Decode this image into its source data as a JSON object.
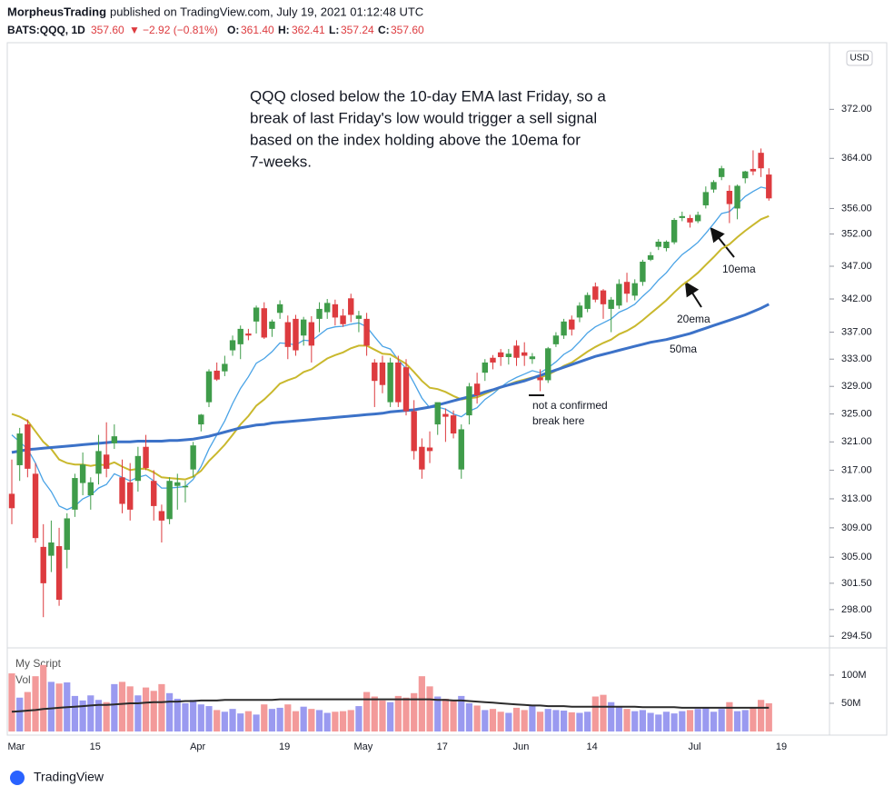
{
  "header": {
    "publisher": "MorpheusTrading",
    "published": "published on TradingView.com, July 19, 2021 01:12:48 UTC",
    "symbol": "BATS:QQQ, 1D",
    "price": "357.60",
    "arrow": "▼",
    "change": "−2.92 (−0.81%)",
    "o_label": "O:",
    "o_value": "361.40",
    "h_label": "H:",
    "h_value": "362.41",
    "l_label": "L:",
    "l_value": "357.24",
    "c_label": "C:",
    "c_value": "357.60"
  },
  "footer": {
    "brand": "TradingView"
  },
  "chart_data": {
    "type": "candlestick",
    "currency": "USD",
    "log_scale": true,
    "grid": false,
    "up_color": "#3f9c4a",
    "down_color": "#dd3b3f",
    "annotation": [
      "QQQ closed below the 10-day EMA last Friday, so a",
      "break of last Friday's low would trigger a sell signal",
      "based on the index holding above the 10ema for",
      "7-weeks."
    ],
    "labels": {
      "ema10": "10ema",
      "ema20": "20ema",
      "ma50": "50ma",
      "break": [
        "not a confirmed",
        "break here"
      ]
    },
    "categories": [
      "Mar",
      null,
      null,
      null,
      null,
      null,
      null,
      null,
      null,
      null,
      "15",
      null,
      null,
      null,
      null,
      null,
      null,
      null,
      null,
      null,
      null,
      null,
      null,
      "Apr",
      null,
      null,
      null,
      null,
      null,
      null,
      null,
      null,
      null,
      null,
      "19",
      null,
      null,
      null,
      null,
      null,
      null,
      null,
      null,
      null,
      "May",
      null,
      null,
      null,
      null,
      null,
      null,
      null,
      null,
      null,
      "17",
      null,
      null,
      null,
      null,
      null,
      null,
      null,
      null,
      null,
      "Jun",
      null,
      null,
      null,
      null,
      null,
      null,
      null,
      null,
      "14",
      null,
      null,
      null,
      null,
      null,
      null,
      null,
      null,
      null,
      null,
      null,
      null,
      "Jul",
      null,
      null,
      null,
      null,
      null,
      null,
      null,
      null,
      null,
      null,
      "19"
    ],
    "open": [
      313.7,
      317.7,
      323.5,
      316.5,
      306.4,
      305.2,
      306.5,
      306.0,
      311.5,
      315.2,
      313.5,
      316.5,
      319.2,
      320.8,
      316.0,
      315.3,
      315.5,
      320.3,
      315.5,
      311.3,
      310.2,
      314.8,
      314.6,
      317.1,
      323.5,
      326.7,
      331.3,
      331.2,
      334.3,
      335.2,
      336.8,
      338.6,
      340.6,
      337.5,
      339.9,
      338.5,
      339.0,
      336.5,
      338.5,
      339.0,
      340.0,
      341.2,
      339.5,
      342.1,
      339.0,
      339.0,
      332.5,
      332.5,
      326.7,
      332.5,
      331.8,
      325.4,
      320.3,
      320.2,
      323.5,
      325.0,
      324.8,
      317.1,
      324.8,
      329.4,
      331.0,
      333.2,
      334.0,
      333.3,
      335.0,
      334.0,
      333.0,
      330.3,
      329.9,
      335.2,
      336.5,
      338.9,
      339.2,
      340.5,
      343.9,
      343.3,
      340.5,
      341.0,
      344.6,
      342.5,
      344.6,
      348.0,
      350.0,
      349.8,
      350.7,
      354.5,
      354.5,
      354.0,
      356.5,
      359.0,
      361.0,
      358.8,
      356.0,
      360.8,
      362.3,
      364.9,
      361.4,
      null
    ],
    "high": [
      318.5,
      323.0,
      324.2,
      318.0,
      309.5,
      310.0,
      309.0,
      311.0,
      316.5,
      319.5,
      316.0,
      322.0,
      323.8,
      323.5,
      318.5,
      318.0,
      320.3,
      322.0,
      317.0,
      312.2,
      316.0,
      316.5,
      315.5,
      321.0,
      325.0,
      331.5,
      332.5,
      333.5,
      336.5,
      338.0,
      337.5,
      341.0,
      341.5,
      338.9,
      341.8,
      339.5,
      339.6,
      339.3,
      339.4,
      341.5,
      342.0,
      341.9,
      340.5,
      342.8,
      340.2,
      339.9,
      333.0,
      333.5,
      333.2,
      333.5,
      333.0,
      327.0,
      321.5,
      322.5,
      326.5,
      325.8,
      325.5,
      323.5,
      329.5,
      331.0,
      333.0,
      333.6,
      334.5,
      334.5,
      335.8,
      335.5,
      333.9,
      331.5,
      334.8,
      337.0,
      339.0,
      339.5,
      341.5,
      343.0,
      344.5,
      343.5,
      342.3,
      345.0,
      346.0,
      345.0,
      348.0,
      349.2,
      351.2,
      351.0,
      354.5,
      355.5,
      355.0,
      355.5,
      359.5,
      360.5,
      362.8,
      359.7,
      359.8,
      362.0,
      365.3,
      365.6,
      362.41,
      null
    ],
    "low": [
      309.5,
      315.5,
      316.0,
      307.0,
      297.0,
      303.0,
      298.5,
      303.5,
      310.5,
      313.5,
      311.5,
      315.0,
      316.0,
      320.0,
      311.0,
      310.0,
      314.0,
      317.0,
      310.0,
      307.0,
      309.5,
      311.5,
      312.5,
      316.0,
      322.5,
      326.0,
      329.8,
      330.5,
      333.5,
      333.0,
      335.8,
      336.8,
      336.0,
      336.3,
      339.0,
      333.0,
      333.5,
      335.0,
      332.5,
      337.0,
      339.0,
      338.0,
      337.8,
      338.5,
      337.0,
      333.5,
      326.0,
      328.0,
      326.0,
      326.0,
      324.8,
      318.5,
      315.8,
      318.0,
      322.0,
      321.0,
      321.5,
      315.8,
      323.5,
      326.5,
      329.8,
      331.5,
      332.0,
      332.2,
      332.0,
      332.0,
      332.3,
      328.3,
      329.5,
      334.8,
      336.0,
      336.5,
      338.5,
      340.0,
      341.5,
      339.0,
      337.0,
      340.5,
      341.5,
      341.8,
      344.0,
      347.8,
      349.5,
      349.3,
      350.4,
      354.0,
      353.0,
      353.7,
      356.0,
      358.5,
      360.5,
      353.7,
      354.3,
      360.0,
      361.3,
      361.0,
      357.24,
      null
    ],
    "close": [
      311.7,
      322.2,
      317.2,
      307.6,
      301.5,
      307.0,
      299.3,
      310.3,
      315.9,
      317.8,
      315.3,
      319.7,
      317.2,
      321.8,
      312.3,
      311.5,
      319.0,
      317.3,
      312.0,
      310.0,
      315.5,
      315.3,
      314.8,
      320.5,
      324.9,
      331.2,
      330.0,
      332.3,
      335.8,
      337.5,
      336.5,
      340.7,
      336.2,
      338.6,
      341.2,
      334.8,
      334.3,
      338.9,
      335.0,
      340.5,
      341.4,
      339.2,
      338.2,
      339.6,
      339.5,
      335.0,
      329.8,
      329.2,
      332.5,
      326.7,
      325.4,
      319.7,
      317.1,
      319.7,
      326.7,
      324.6,
      322.2,
      322.8,
      329.0,
      327.7,
      332.5,
      332.5,
      333.3,
      333.8,
      333.2,
      333.5,
      333.4,
      329.9,
      334.6,
      336.5,
      338.6,
      337.4,
      341.0,
      342.6,
      341.9,
      341.2,
      341.9,
      344.3,
      342.8,
      344.4,
      347.7,
      348.7,
      350.8,
      350.8,
      354.2,
      354.8,
      353.8,
      355.0,
      358.6,
      360.2,
      362.4,
      356.7,
      359.6,
      361.9,
      361.9,
      362.4,
      357.6,
      null
    ],
    "lines": [
      {
        "name": "10ema",
        "color": "#4aa3e6",
        "width": 1.3,
        "values": [
          322,
          321,
          320,
          318,
          315.5,
          314,
          312,
          311.5,
          312,
          313,
          313.5,
          314.5,
          315,
          316.5,
          316,
          315.5,
          316,
          316.3,
          315.5,
          314.5,
          314.5,
          314.6,
          314.7,
          315.7,
          317.5,
          320,
          322,
          324,
          326.5,
          328.7,
          330.4,
          332.4,
          333.1,
          334.1,
          335.4,
          335.3,
          335.1,
          335.8,
          335.7,
          336.6,
          337.5,
          337.8,
          337.9,
          338.2,
          338.4,
          337.8,
          336.3,
          334.9,
          334.5,
          332.9,
          331.6,
          329.5,
          327.3,
          325.9,
          326.0,
          325.7,
          325.0,
          324.6,
          325.4,
          325.9,
          327.1,
          327.9,
          328.9,
          329.7,
          330.3,
          330.8,
          331.3,
          331.0,
          331.7,
          332.6,
          333.7,
          334.4,
          335.6,
          336.9,
          337.8,
          338.4,
          339.0,
          340.0,
          340.5,
          341.2,
          342.4,
          343.5,
          344.9,
          346.0,
          347.5,
          348.8,
          349.7,
          350.7,
          352.1,
          353.6,
          355.2,
          355.5,
          356.7,
          357.9,
          358.7,
          359.4,
          359.1,
          null
        ]
      },
      {
        "name": "20ema",
        "color": "#c9b82d",
        "width": 2,
        "values": [
          325,
          324.6,
          324.0,
          322.5,
          321,
          320,
          318.5,
          318.0,
          317.8,
          317.8,
          317.6,
          317.8,
          317.7,
          318.1,
          317.5,
          317,
          317.2,
          317.2,
          316.7,
          316.0,
          315.9,
          315.8,
          315.7,
          316.1,
          316.9,
          318.3,
          319.4,
          320.6,
          322,
          323.5,
          324.7,
          326.2,
          327.1,
          328.2,
          329.4,
          329.9,
          330.3,
          331.1,
          331.5,
          332.3,
          333.1,
          333.6,
          334.0,
          334.6,
          335.0,
          335.0,
          334.4,
          333.8,
          333.7,
          333.0,
          332.3,
          331.1,
          329.8,
          328.8,
          328.6,
          328.2,
          327.6,
          327.1,
          327.3,
          327.4,
          327.9,
          328.4,
          328.8,
          329.3,
          329.7,
          330.0,
          330.3,
          330.3,
          330.7,
          331.3,
          332.0,
          332.5,
          333.3,
          334.1,
          334.8,
          335.4,
          335.9,
          336.7,
          337.2,
          337.9,
          338.8,
          339.8,
          340.8,
          341.8,
          343.0,
          344.1,
          345.0,
          346.0,
          347.2,
          348.4,
          349.7,
          350.4,
          351.5,
          352.5,
          353.4,
          354.3,
          354.8,
          null
        ]
      },
      {
        "name": "50ma",
        "color": "#3c72c8",
        "width": 3,
        "values": [
          319.5,
          319.7,
          319.9,
          320.0,
          320.1,
          320.2,
          320.3,
          320.4,
          320.5,
          320.6,
          320.7,
          320.8,
          320.9,
          321.0,
          321.0,
          321.0,
          321.1,
          321.1,
          321.1,
          321.1,
          321.2,
          321.2,
          321.3,
          321.4,
          321.6,
          321.8,
          322.1,
          322.4,
          322.7,
          323.0,
          323.2,
          323.4,
          323.5,
          323.7,
          323.8,
          323.9,
          324.0,
          324.1,
          324.2,
          324.3,
          324.4,
          324.5,
          324.6,
          324.7,
          324.8,
          324.9,
          325.0,
          325.1,
          325.3,
          325.4,
          325.5,
          325.6,
          325.8,
          326.0,
          326.3,
          326.6,
          326.9,
          327.2,
          327.5,
          327.8,
          328.2,
          328.5,
          328.9,
          329.2,
          329.5,
          329.8,
          330.2,
          330.6,
          331.0,
          331.4,
          331.8,
          332.2,
          332.6,
          333.0,
          333.4,
          333.7,
          334.0,
          334.3,
          334.6,
          334.9,
          335.2,
          335.5,
          335.7,
          335.9,
          336.2,
          336.5,
          336.8,
          337.2,
          337.6,
          338.0,
          338.4,
          338.8,
          339.2,
          339.6,
          340.1,
          340.6,
          341.2,
          null
        ]
      }
    ],
    "ylim": [
      293.1,
      383
    ],
    "yticks": [
      {
        "value": 372,
        "label": "372.00"
      },
      {
        "value": 364,
        "label": "364.00"
      },
      {
        "value": 356,
        "label": "356.00"
      },
      {
        "value": 352,
        "label": "352.00"
      },
      {
        "value": 347,
        "label": "347.00"
      },
      {
        "value": 342,
        "label": "342.00"
      },
      {
        "value": 337,
        "label": "337.00"
      },
      {
        "value": 333,
        "label": "333.00"
      },
      {
        "value": 329,
        "label": "329.00"
      },
      {
        "value": 325,
        "label": "325.00"
      },
      {
        "value": 321,
        "label": "321.00"
      },
      {
        "value": 317,
        "label": "317.00"
      },
      {
        "value": 313,
        "label": "313.00"
      },
      {
        "value": 309,
        "label": "309.00"
      },
      {
        "value": 305,
        "label": "305.00"
      },
      {
        "value": 301.5,
        "label": "301.50"
      },
      {
        "value": 298,
        "label": "298.00"
      },
      {
        "value": 294.5,
        "label": "294.50"
      }
    ],
    "volume": {
      "title": "My Script",
      "name": "Vol",
      "up_color": "#9a9af0",
      "down_color": "#f39a9a",
      "ma_color": "#2b2b2b",
      "values": [
        103,
        60,
        70,
        98,
        118,
        88,
        85,
        87,
        63,
        55,
        64,
        56,
        52,
        84,
        88,
        80,
        64,
        78,
        72,
        84,
        68,
        58,
        50,
        56,
        48,
        45,
        38,
        35,
        40,
        32,
        36,
        30,
        48,
        40,
        42,
        48,
        36,
        44,
        40,
        38,
        33,
        35,
        36,
        38,
        45,
        70,
        62,
        55,
        52,
        63,
        60,
        68,
        98,
        80,
        62,
        58,
        55,
        63,
        50,
        46,
        38,
        40,
        35,
        33,
        42,
        38,
        46,
        35,
        40,
        38,
        37,
        34,
        33,
        35,
        62,
        65,
        52,
        45,
        40,
        36,
        38,
        33,
        30,
        35,
        32,
        36,
        38,
        40,
        42,
        35,
        40,
        52,
        36,
        38,
        42,
        56,
        50,
        null
      ],
      "ma": [
        35,
        36,
        37,
        38,
        40,
        41,
        42,
        43,
        44,
        45,
        46,
        47,
        47,
        48,
        49,
        50,
        50,
        51,
        52,
        52,
        53,
        53,
        54,
        54,
        55,
        55,
        55,
        56,
        56,
        56,
        56,
        56,
        56,
        56,
        57,
        57,
        57,
        57,
        57,
        57,
        57,
        57,
        57,
        57,
        57,
        57,
        57,
        57,
        57,
        57,
        57,
        57,
        57,
        57,
        56,
        56,
        55,
        55,
        54,
        53,
        52,
        51,
        50,
        49,
        48,
        47,
        46,
        46,
        45,
        45,
        45,
        44,
        44,
        44,
        44,
        44,
        44,
        44,
        44,
        44,
        43,
        43,
        43,
        43,
        43,
        42,
        42,
        42,
        42,
        42,
        42,
        42,
        42,
        42,
        42,
        42,
        42,
        null
      ],
      "ylim": [
        0,
        145
      ],
      "yticks": [
        {
          "value": 100,
          "label": "100M"
        },
        {
          "value": 50,
          "label": "50M"
        }
      ]
    }
  }
}
